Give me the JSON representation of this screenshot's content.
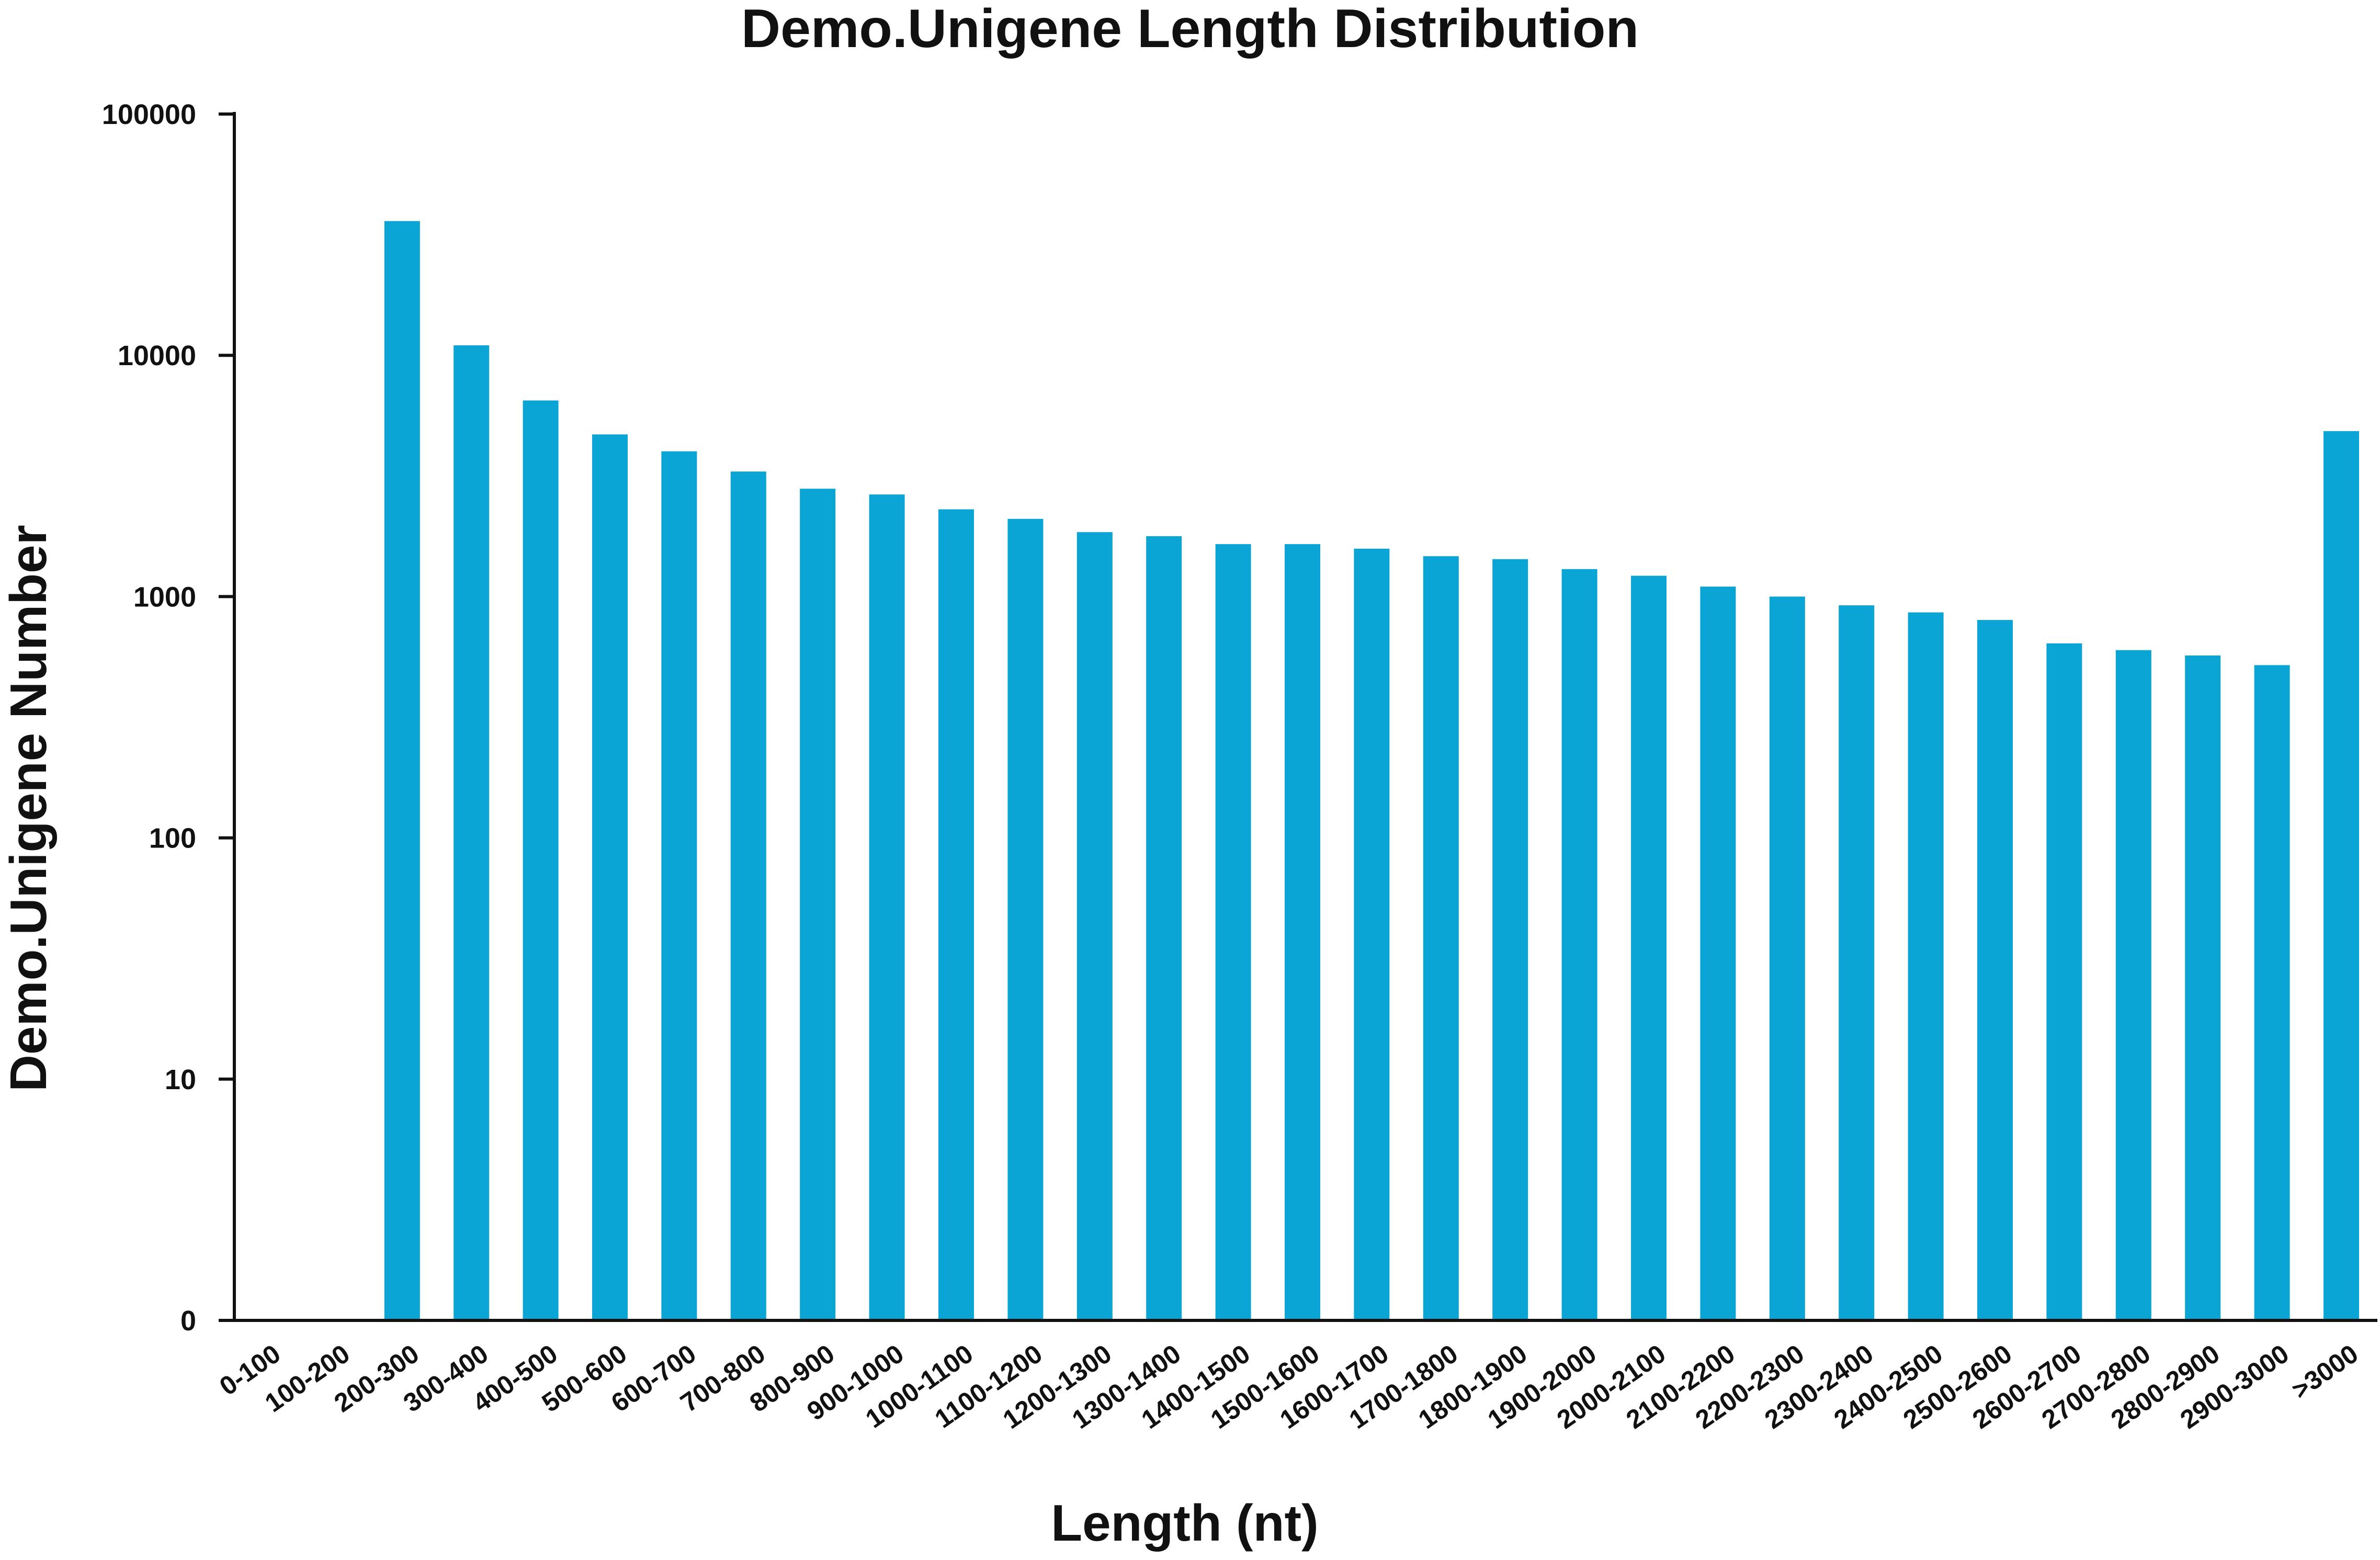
{
  "chart_data": {
    "type": "bar",
    "title": "Demo.Unigene Length Distribution",
    "xlabel": "Length (nt)",
    "ylabel": "Demo.Unigene Number",
    "yscale": "log",
    "ylim": [
      1,
      100000
    ],
    "yticks": [
      1,
      10,
      100,
      1000,
      10000,
      100000
    ],
    "ytick_labels": [
      "0",
      "10",
      "100",
      "1000",
      "10000",
      "100000"
    ],
    "grid": false,
    "legend": "none",
    "bar_color": "#0aa5d5",
    "categories": [
      "0-100",
      "100-200",
      "200-300",
      "300-400",
      "400-500",
      "500-600",
      "600-700",
      "700-800",
      "800-900",
      "900-1000",
      "1000-1100",
      "1100-1200",
      "1200-1300",
      "1300-1400",
      "1400-1500",
      "1500-1600",
      "1600-1700",
      "1700-1800",
      "1800-1900",
      "1900-2000",
      "2000-2100",
      "2100-2200",
      "2200-2300",
      "2300-2400",
      "2400-2500",
      "2500-2600",
      "2600-2700",
      "2700-2800",
      "2800-2900",
      "2900-3000",
      ">3000"
    ],
    "values": [
      0,
      0,
      36000,
      11000,
      6500,
      4700,
      4000,
      3300,
      2800,
      2650,
      2300,
      2100,
      1850,
      1780,
      1650,
      1650,
      1580,
      1470,
      1430,
      1300,
      1220,
      1100,
      1000,
      920,
      860,
      800,
      640,
      600,
      570,
      520,
      4850
    ]
  }
}
